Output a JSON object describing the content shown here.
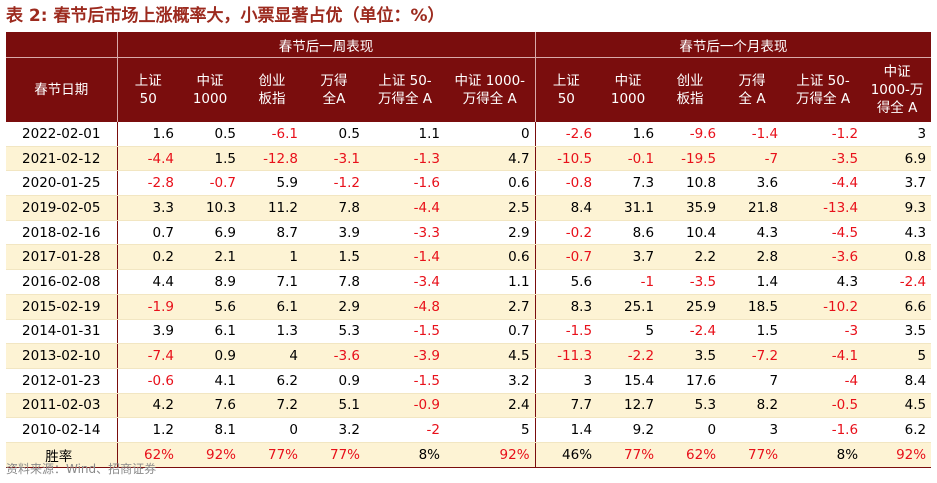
{
  "title": "表 2:  春节后市场上涨概率大，小票显著占优（单位：%）",
  "group_headers": [
    "春节后一周表现",
    "春节后一个月表现"
  ],
  "date_header": "春节日期",
  "week_columns": [
    [
      "上证",
      "50"
    ],
    [
      "中证",
      "1000"
    ],
    [
      "创业",
      "板指"
    ],
    [
      "万得",
      "全A"
    ],
    [
      "上证 50-",
      "万得全 A"
    ],
    [
      "中证 1000-",
      "万得全 A"
    ]
  ],
  "month_columns": [
    [
      "上证",
      "50"
    ],
    [
      "中证",
      "1000"
    ],
    [
      "创业",
      "板指"
    ],
    [
      "万得",
      "全 A"
    ],
    [
      "上证 50-",
      "万得全 A"
    ],
    [
      "中证",
      "1000-万",
      "得全 A"
    ]
  ],
  "rows": [
    {
      "date": "2022-02-01",
      "values": [
        "1.6",
        "0.5",
        "-6.1",
        "0.5",
        "1.1",
        "0",
        "-2.6",
        "1.6",
        "-9.6",
        "-1.4",
        "-1.2",
        "3"
      ]
    },
    {
      "date": "2021-02-12",
      "values": [
        "-4.4",
        "1.5",
        "-12.8",
        "-3.1",
        "-1.3",
        "4.7",
        "-10.5",
        "-0.1",
        "-19.5",
        "-7",
        "-3.5",
        "6.9"
      ]
    },
    {
      "date": "2020-01-25",
      "values": [
        "-2.8",
        "-0.7",
        "5.9",
        "-1.2",
        "-1.6",
        "0.6",
        "-0.8",
        "7.3",
        "10.8",
        "3.6",
        "-4.4",
        "3.7"
      ]
    },
    {
      "date": "2019-02-05",
      "values": [
        "3.3",
        "10.3",
        "11.2",
        "7.8",
        "-4.4",
        "2.5",
        "8.4",
        "31.1",
        "35.9",
        "21.8",
        "-13.4",
        "9.3"
      ]
    },
    {
      "date": "2018-02-16",
      "values": [
        "0.7",
        "6.9",
        "8.7",
        "3.9",
        "-3.3",
        "2.9",
        "-0.2",
        "8.6",
        "10.4",
        "4.3",
        "-4.5",
        "4.3"
      ]
    },
    {
      "date": "2017-01-28",
      "values": [
        "0.2",
        "2.1",
        "1",
        "1.5",
        "-1.4",
        "0.6",
        "-0.7",
        "3.7",
        "2.2",
        "2.8",
        "-3.6",
        "0.8"
      ]
    },
    {
      "date": "2016-02-08",
      "values": [
        "4.4",
        "8.9",
        "7.1",
        "7.8",
        "-3.4",
        "1.1",
        "5.6",
        "-1",
        "-3.5",
        "1.4",
        "4.3",
        "-2.4"
      ]
    },
    {
      "date": "2015-02-19",
      "values": [
        "-1.9",
        "5.6",
        "6.1",
        "2.9",
        "-4.8",
        "2.7",
        "8.3",
        "25.1",
        "25.9",
        "18.5",
        "-10.2",
        "6.6"
      ]
    },
    {
      "date": "2014-01-31",
      "values": [
        "3.9",
        "6.1",
        "1.3",
        "5.3",
        "-1.5",
        "0.7",
        "-1.5",
        "5",
        "-2.4",
        "1.5",
        "-3",
        "3.5"
      ]
    },
    {
      "date": "2013-02-10",
      "values": [
        "-7.4",
        "0.9",
        "4",
        "-3.6",
        "-3.9",
        "4.5",
        "-11.3",
        "-2.2",
        "3.5",
        "-7.2",
        "-4.1",
        "5"
      ]
    },
    {
      "date": "2012-01-23",
      "values": [
        "-0.6",
        "4.1",
        "6.2",
        "0.9",
        "-1.5",
        "3.2",
        "3",
        "15.4",
        "17.6",
        "7",
        "-4",
        "8.4"
      ]
    },
    {
      "date": "2011-02-03",
      "values": [
        "4.2",
        "7.6",
        "7.2",
        "5.1",
        "-0.9",
        "2.4",
        "7.7",
        "12.7",
        "5.3",
        "8.2",
        "-0.5",
        "4.5"
      ]
    },
    {
      "date": "2010-02-14",
      "values": [
        "1.2",
        "8.1",
        "0",
        "3.2",
        "-2",
        "5",
        "1.4",
        "9.2",
        "0",
        "3",
        "-1.6",
        "6.2"
      ]
    }
  ],
  "win_rate": {
    "label": "胜率",
    "values": [
      "62%",
      "92%",
      "77%",
      "77%",
      "8%",
      "92%",
      "46%",
      "77%",
      "62%",
      "77%",
      "8%",
      "92%"
    ]
  },
  "source": "资料来源：Wind、招商证券",
  "colors": {
    "header_bg": "#7a0d0d",
    "negative": "#e8101a",
    "alt_row": "#fdf3d4",
    "title": "#9c2a1e"
  }
}
